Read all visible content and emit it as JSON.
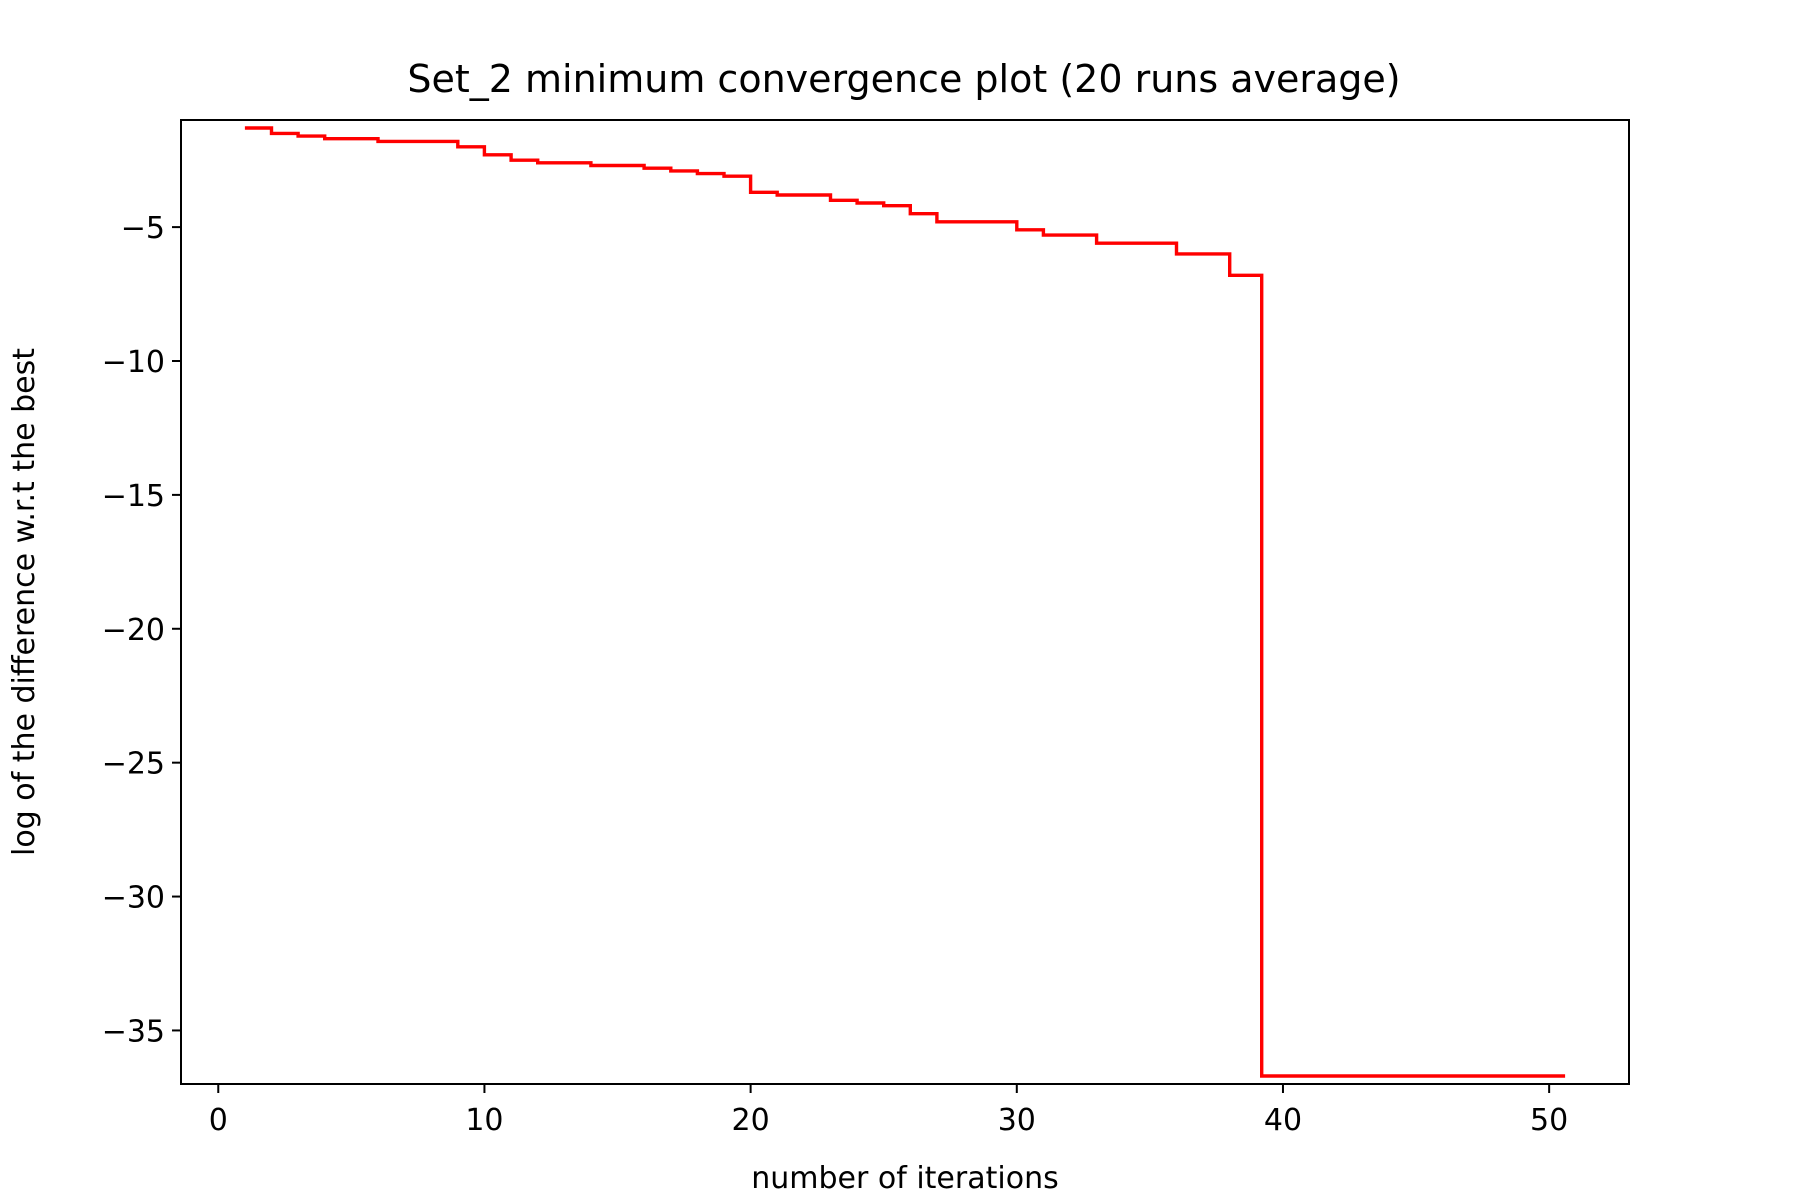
{
  "chart_data": {
    "type": "line",
    "title": "Set_2 minimum convergence plot (20 runs average)",
    "xlabel": "number of iterations",
    "ylabel": "log of the difference w.r.t the best",
    "xlim": [
      -1.4,
      53
    ],
    "ylim": [
      -37,
      -1
    ],
    "xticks": [
      0,
      10,
      20,
      30,
      40,
      50
    ],
    "yticks": [
      -5,
      -10,
      -15,
      -20,
      -25,
      -30,
      -35
    ],
    "xtick_labels": [
      "0",
      "10",
      "20",
      "30",
      "40",
      "50"
    ],
    "ytick_labels": [
      "−5",
      "−10",
      "−15",
      "−20",
      "−25",
      "−30",
      "−35"
    ],
    "grid": false,
    "legend": false,
    "series": [
      {
        "color": "#ff0000",
        "step": "post",
        "x": [
          1,
          2,
          3,
          4,
          6,
          9,
          10,
          11,
          12,
          14,
          16,
          17,
          18,
          19,
          20,
          21,
          23,
          24,
          25,
          26,
          27,
          28,
          30,
          31,
          33,
          36,
          38,
          39.2,
          50.6
        ],
        "y": [
          -1.3,
          -1.5,
          -1.6,
          -1.7,
          -1.8,
          -2.0,
          -2.3,
          -2.5,
          -2.6,
          -2.7,
          -2.8,
          -2.9,
          -3.0,
          -3.1,
          -3.7,
          -3.8,
          -4.0,
          -4.1,
          -4.2,
          -4.5,
          -4.8,
          -4.8,
          -5.1,
          -5.3,
          -5.6,
          -6.0,
          -6.8,
          -36.7,
          -36.7
        ]
      }
    ]
  }
}
